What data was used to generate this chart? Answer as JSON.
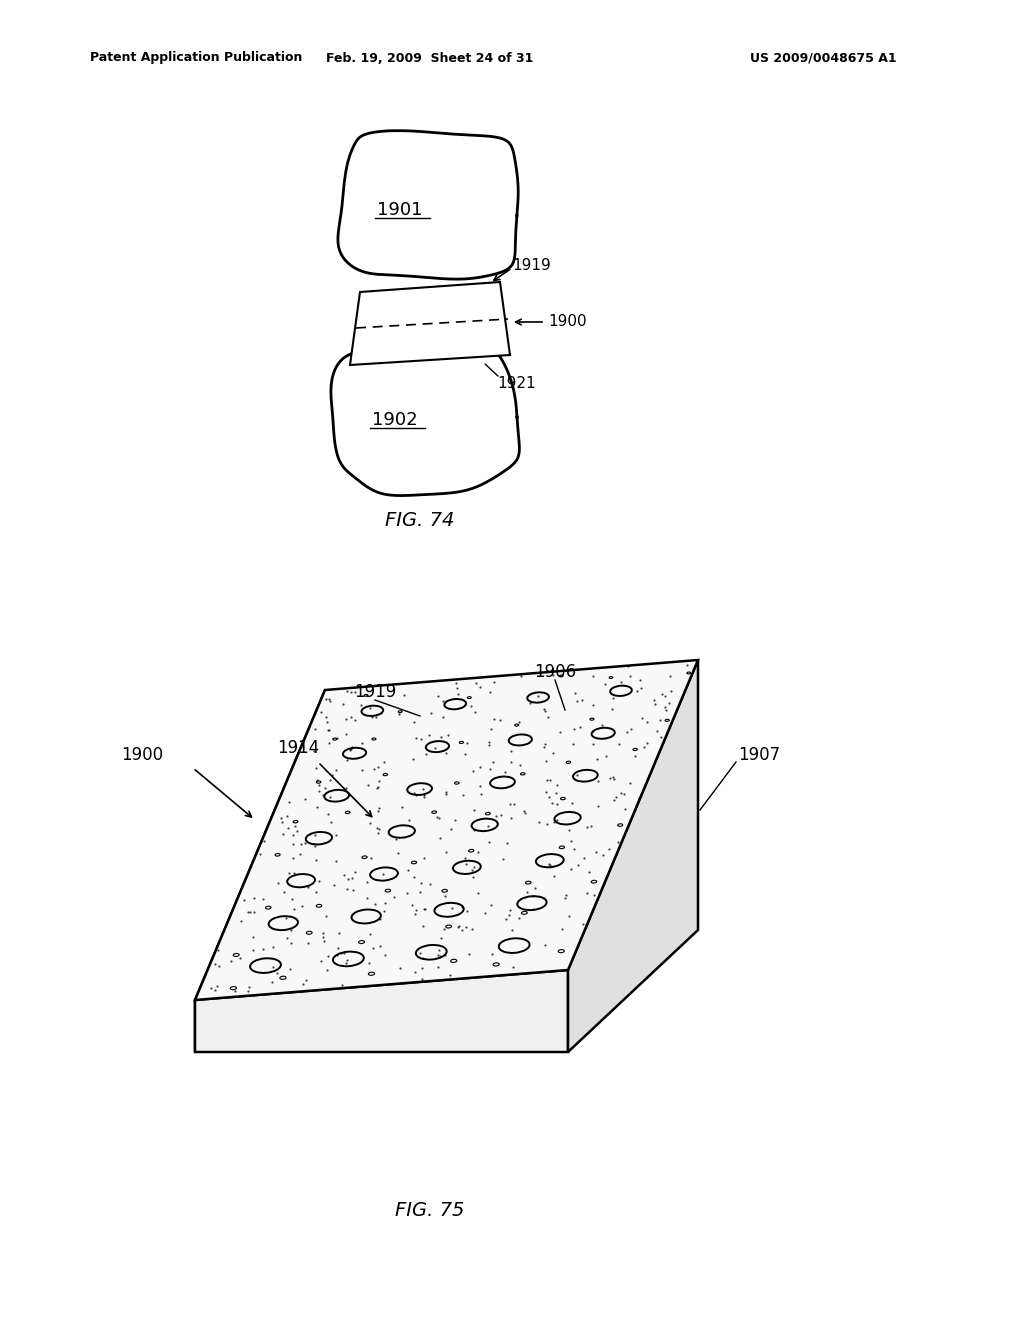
{
  "bg_color": "#ffffff",
  "header_left": "Patent Application Publication",
  "header_mid": "Feb. 19, 2009  Sheet 24 of 31",
  "header_right": "US 2009/0048675 A1",
  "fig74_label": "FIG. 74",
  "fig75_label": "FIG. 75",
  "label_1901": "1901",
  "label_1902": "1902",
  "label_1900": "1900",
  "label_1919_top": "1919",
  "label_1921": "1921",
  "label_1919_bot": "1919",
  "label_1906": "1906",
  "label_1907": "1907",
  "label_1914": "1914",
  "label_1900b": "1900"
}
